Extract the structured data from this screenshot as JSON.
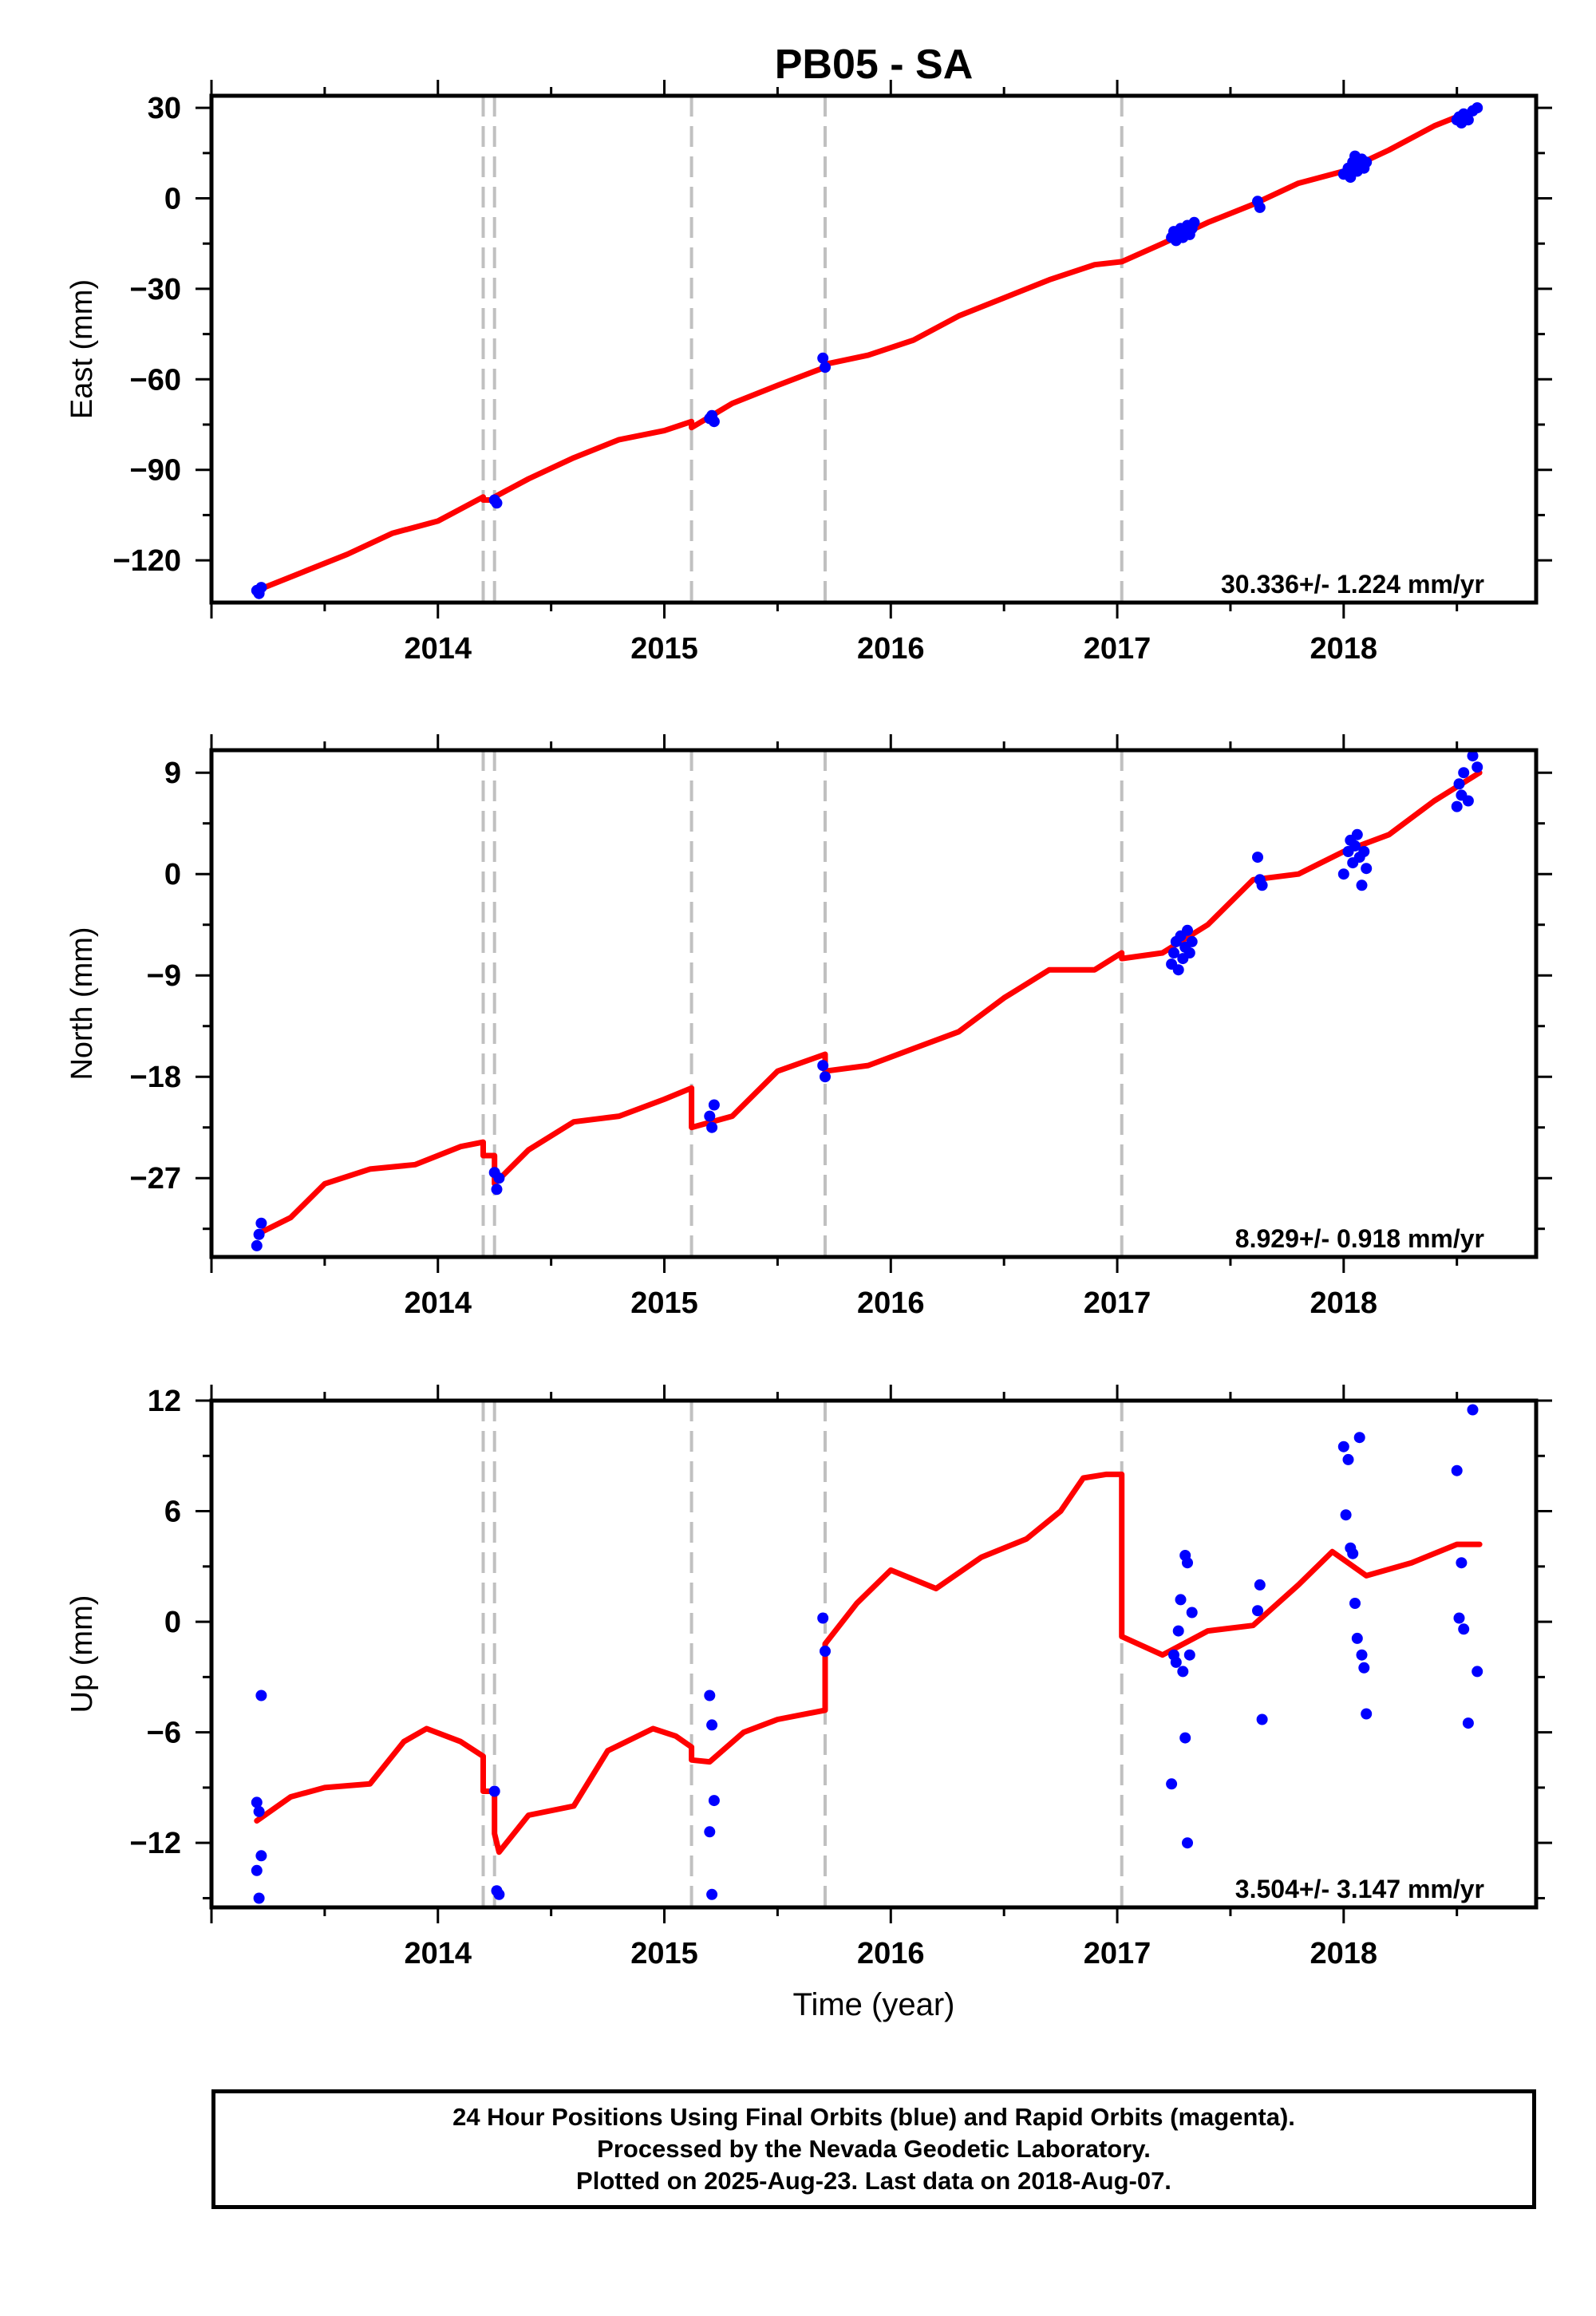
{
  "title": "PB05 - SA",
  "colors": {
    "model": "#ff0000",
    "final_orbits": "#0000ff",
    "event_lines": "#c0c0c0",
    "frame": "#000000"
  },
  "footer": {
    "line1": "24 Hour Positions Using Final Orbits (blue) and Rapid Orbits (magenta).",
    "line2": "Processed by the Nevada Geodetic Laboratory.",
    "line3": "Plotted on 2025-Aug-23. Last data on 2018-Aug-07."
  },
  "chart_data": [
    {
      "type": "scatter",
      "component": "east",
      "ylabel": "East (mm)",
      "xlabel": "",
      "xlim": [
        2013.0,
        2018.85
      ],
      "ylim": [
        -134,
        34
      ],
      "xticks": [
        2014,
        2015,
        2016,
        2017,
        2018
      ],
      "yticks": [
        -120,
        -90,
        -60,
        -30,
        0,
        30
      ],
      "rate_label": "30.336+/- 1.224 mm/yr",
      "event_lines": [
        2014.2,
        2014.25,
        2015.12,
        2015.71,
        2017.02
      ],
      "series": [
        {
          "style": "model-line",
          "x": [
            2013.2,
            2013.4,
            2013.6,
            2013.8,
            2014.0,
            2014.2,
            2014.2,
            2014.25,
            2014.25,
            2014.4,
            2014.6,
            2014.8,
            2015.0,
            2015.12,
            2015.12,
            2015.3,
            2015.5,
            2015.71,
            2015.71,
            2015.9,
            2016.1,
            2016.3,
            2016.5,
            2016.7,
            2016.9,
            2017.02,
            2017.02,
            2017.2,
            2017.4,
            2017.6,
            2017.8,
            2018.0,
            2018.2,
            2018.4,
            2018.6
          ],
          "y": [
            -130,
            -124,
            -118,
            -111,
            -107,
            -99,
            -100,
            -100,
            -99,
            -93,
            -86,
            -80,
            -77,
            -74,
            -76,
            -68,
            -62,
            -56,
            -55,
            -52,
            -47,
            -39,
            -33,
            -27,
            -22,
            -21,
            -21,
            -15,
            -8,
            -2,
            5,
            9,
            16,
            24,
            30
          ]
        },
        {
          "name": "Final Orbits",
          "style": "points",
          "x": [
            2013.2,
            2013.21,
            2013.22,
            2014.25,
            2014.26,
            2015.2,
            2015.21,
            2015.22,
            2015.7,
            2015.71,
            2017.24,
            2017.25,
            2017.26,
            2017.27,
            2017.28,
            2017.29,
            2017.3,
            2017.31,
            2017.32,
            2017.33,
            2017.34,
            2017.62,
            2017.63,
            2018.0,
            2018.02,
            2018.03,
            2018.04,
            2018.05,
            2018.06,
            2018.07,
            2018.08,
            2018.09,
            2018.1,
            2018.5,
            2018.51,
            2018.52,
            2018.53,
            2018.55,
            2018.57,
            2018.59
          ],
          "y": [
            -130,
            -131,
            -129,
            -100,
            -101,
            -73,
            -72,
            -74,
            -53,
            -56,
            -13,
            -11,
            -14,
            -12,
            -10,
            -13,
            -11,
            -9,
            -12,
            -10,
            -8,
            -1,
            -3,
            8,
            10,
            7,
            12,
            14,
            9,
            11,
            13,
            10,
            12,
            26,
            27,
            25,
            28,
            26,
            29,
            30
          ]
        }
      ]
    },
    {
      "type": "scatter",
      "component": "north",
      "ylabel": "North (mm)",
      "xlabel": "",
      "xlim": [
        2013.0,
        2018.85
      ],
      "ylim": [
        -34,
        11
      ],
      "xticks": [
        2014,
        2015,
        2016,
        2017,
        2018
      ],
      "yticks": [
        -27,
        -18,
        -9,
        0,
        9
      ],
      "rate_label": "8.929+/- 0.918 mm/yr",
      "event_lines": [
        2014.2,
        2014.25,
        2015.12,
        2015.71,
        2017.02
      ],
      "series": [
        {
          "style": "model-line",
          "x": [
            2013.2,
            2013.35,
            2013.5,
            2013.7,
            2013.9,
            2014.1,
            2014.2,
            2014.2,
            2014.25,
            2014.25,
            2014.4,
            2014.6,
            2014.8,
            2015.0,
            2015.12,
            2015.12,
            2015.3,
            2015.5,
            2015.71,
            2015.71,
            2015.9,
            2016.1,
            2016.3,
            2016.5,
            2016.7,
            2016.9,
            2017.02,
            2017.02,
            2017.2,
            2017.4,
            2017.6,
            2017.8,
            2018.0,
            2018.2,
            2018.4,
            2018.6
          ],
          "y": [
            -32,
            -30.5,
            -27.5,
            -26.2,
            -25.8,
            -24.2,
            -23.8,
            -25,
            -25,
            -27.5,
            -24.5,
            -22,
            -21.5,
            -20,
            -19,
            -22.5,
            -21.5,
            -17.5,
            -16,
            -17.5,
            -17,
            -15.5,
            -14,
            -11,
            -8.5,
            -8.5,
            -7,
            -7.5,
            -7,
            -4.5,
            -0.5,
            0,
            2,
            3.5,
            6.5,
            9
          ]
        },
        {
          "name": "Final Orbits",
          "style": "points",
          "x": [
            2013.2,
            2013.21,
            2013.22,
            2014.25,
            2014.26,
            2014.27,
            2015.2,
            2015.21,
            2015.22,
            2015.7,
            2015.71,
            2017.24,
            2017.25,
            2017.26,
            2017.27,
            2017.28,
            2017.29,
            2017.3,
            2017.31,
            2017.32,
            2017.33,
            2017.62,
            2017.63,
            2017.64,
            2018.0,
            2018.02,
            2018.03,
            2018.04,
            2018.05,
            2018.06,
            2018.07,
            2018.08,
            2018.09,
            2018.1,
            2018.5,
            2018.51,
            2018.52,
            2018.53,
            2018.55,
            2018.57,
            2018.59
          ],
          "y": [
            -33,
            -32,
            -31,
            -26.5,
            -28,
            -27,
            -21.5,
            -22.5,
            -20.5,
            -17,
            -18,
            -8,
            -7,
            -6,
            -8.5,
            -5.5,
            -7.5,
            -6.5,
            -5,
            -7,
            -6,
            1.5,
            -0.5,
            -1,
            0,
            2,
            3,
            1,
            2.5,
            3.5,
            1.5,
            -1,
            2,
            0.5,
            6,
            8,
            7,
            9,
            6.5,
            10.5,
            9.5
          ]
        }
      ]
    },
    {
      "type": "scatter",
      "component": "up",
      "ylabel": "Up (mm)",
      "xlabel": "Time (year)",
      "xlim": [
        2013.0,
        2018.85
      ],
      "ylim": [
        -15.5,
        12
      ],
      "xticks": [
        2014,
        2015,
        2016,
        2017,
        2018
      ],
      "yticks": [
        -12,
        -6,
        0,
        6,
        12
      ],
      "rate_label": "3.504+/- 3.147 mm/yr",
      "event_lines": [
        2014.2,
        2014.25,
        2015.12,
        2015.71,
        2017.02
      ],
      "series": [
        {
          "style": "model-line",
          "x": [
            2013.2,
            2013.35,
            2013.5,
            2013.7,
            2013.85,
            2013.95,
            2014.1,
            2014.2,
            2014.2,
            2014.25,
            2014.25,
            2014.27,
            2014.4,
            2014.6,
            2014.75,
            2014.95,
            2015.05,
            2015.12,
            2015.12,
            2015.2,
            2015.35,
            2015.5,
            2015.71,
            2015.71,
            2015.85,
            2016.0,
            2016.2,
            2016.4,
            2016.6,
            2016.75,
            2016.85,
            2016.95,
            2017.02,
            2017.02,
            2017.2,
            2017.4,
            2017.6,
            2017.8,
            2017.95,
            2018.1,
            2018.3,
            2018.5,
            2018.6
          ],
          "y": [
            -10.8,
            -9.5,
            -9,
            -8.8,
            -6.5,
            -5.8,
            -6.5,
            -7.3,
            -9.2,
            -9.2,
            -11.5,
            -12.5,
            -10.5,
            -10,
            -7,
            -5.8,
            -6.2,
            -6.8,
            -7.5,
            -7.6,
            -6,
            -5.3,
            -4.8,
            -1.2,
            1,
            2.8,
            1.8,
            3.5,
            4.5,
            6,
            7.8,
            8,
            8,
            -0.8,
            -1.8,
            -0.5,
            -0.2,
            2,
            3.8,
            2.5,
            3.2,
            4.2,
            4.2
          ]
        },
        {
          "name": "Final Orbits",
          "style": "points",
          "x": [
            2013.2,
            2013.21,
            2013.22,
            2013.2,
            2013.21,
            2013.22,
            2014.25,
            2014.26,
            2014.27,
            2015.2,
            2015.21,
            2015.22,
            2015.2,
            2015.21,
            2015.7,
            2015.71,
            2017.24,
            2017.25,
            2017.26,
            2017.27,
            2017.28,
            2017.29,
            2017.3,
            2017.31,
            2017.32,
            2017.33,
            2017.3,
            2017.31,
            2017.62,
            2017.63,
            2017.64,
            2018.0,
            2018.01,
            2018.02,
            2018.03,
            2018.04,
            2018.05,
            2018.06,
            2018.07,
            2018.08,
            2018.09,
            2018.1,
            2018.5,
            2018.51,
            2018.52,
            2018.53,
            2018.55,
            2018.57,
            2018.59
          ],
          "y": [
            -9.8,
            -10.3,
            -12.7,
            -13.5,
            -15,
            -4,
            -9.2,
            -14.6,
            -14.8,
            -4,
            -5.6,
            -9.7,
            -11.4,
            -14.8,
            0.2,
            -1.6,
            -8.8,
            -1.8,
            -2.2,
            -0.5,
            1.2,
            -2.7,
            3.6,
            3.2,
            -1.8,
            0.5,
            -6.3,
            -12,
            0.6,
            2,
            -5.3,
            9.5,
            5.8,
            8.8,
            4,
            3.7,
            1,
            -0.9,
            10,
            -1.8,
            -2.5,
            -5,
            8.2,
            0.2,
            3.2,
            -0.4,
            -5.5,
            11.5,
            -2.7
          ]
        }
      ]
    }
  ]
}
